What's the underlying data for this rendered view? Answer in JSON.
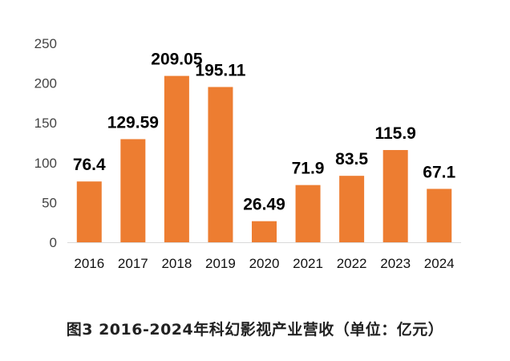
{
  "chart_data": {
    "type": "bar",
    "categories": [
      "2016",
      "2017",
      "2018",
      "2019",
      "2020",
      "2021",
      "2022",
      "2023",
      "2024"
    ],
    "values": [
      76.4,
      129.59,
      209.05,
      195.11,
      26.49,
      71.9,
      83.5,
      115.9,
      67.1
    ],
    "data_labels": [
      "76.4",
      "129.59",
      "209.05",
      "195.11",
      "26.49",
      "71.9",
      "83.5",
      "115.9",
      "67.1"
    ],
    "y_ticks": [
      0,
      50,
      100,
      150,
      200,
      250
    ],
    "ylim": [
      0,
      250
    ],
    "grid": false,
    "legend": "none",
    "bar_color": "#ED7D31",
    "title": "图3 2016-2024年科幻影视产业营收（单位：亿元）"
  }
}
